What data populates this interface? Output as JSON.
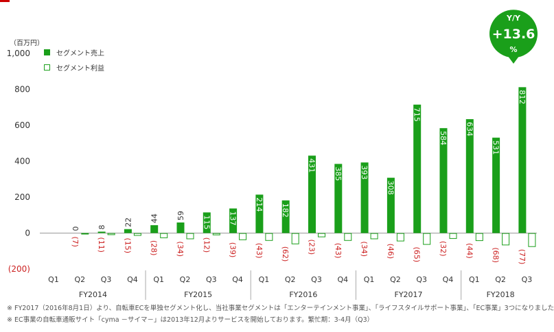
{
  "chart_data": {
    "type": "bar",
    "unit_label": "（百万円）",
    "ylim": [
      -200,
      1000
    ],
    "yticks": [
      1000,
      800,
      600,
      400,
      200,
      0,
      -200
    ],
    "ytick_labels": [
      "1,000",
      "800",
      "600",
      "400",
      "200",
      "0",
      "(200)"
    ],
    "categories": [
      "Q1",
      "Q2",
      "Q3",
      "Q4",
      "Q1",
      "Q2",
      "Q3",
      "Q4",
      "Q1",
      "Q2",
      "Q3",
      "Q4",
      "Q1",
      "Q2",
      "Q3",
      "Q4",
      "Q1",
      "Q2",
      "Q3"
    ],
    "fiscal_years": [
      {
        "label": "FY2014",
        "count": 4
      },
      {
        "label": "FY2015",
        "count": 4
      },
      {
        "label": "FY2016",
        "count": 4
      },
      {
        "label": "FY2017",
        "count": 4
      },
      {
        "label": "FY2018",
        "count": 3
      }
    ],
    "series": [
      {
        "name": "セグメント売上",
        "color": "#1a9f1a",
        "style": "filled",
        "values": [
          null,
          0,
          8,
          22,
          44,
          59,
          115,
          137,
          214,
          182,
          431,
          385,
          393,
          308,
          715,
          584,
          634,
          531,
          812
        ]
      },
      {
        "name": "セグメント利益",
        "color": "#1a9f1a",
        "style": "outline",
        "values": [
          null,
          -7,
          -11,
          -15,
          -28,
          -34,
          -12,
          -39,
          -43,
          -62,
          -23,
          -43,
          -34,
          -46,
          -65,
          -32,
          -44,
          -68,
          -77
        ],
        "value_labels": [
          "",
          "(7)",
          "(11)",
          "(15)",
          "(28)",
          "(34)",
          "(12)",
          "(39)",
          "(43)",
          "(62)",
          "(23)",
          "(43)",
          "(34)",
          "(46)",
          "(65)",
          "(32)",
          "(44)",
          "(68)",
          "(77)"
        ]
      }
    ],
    "legend_position": "top-left",
    "grid": false
  },
  "badge": {
    "top": "Y/Y",
    "value": "+13.6",
    "bottom": "%",
    "color": "#1a9f1a"
  },
  "footnotes": [
    "※  FY2017（2016年8月1日）より、自転車ECを単独セグメント化し、当社事業セグメントは「エンターテインメント事業」、「ライフスタイルサポート事業」、「EC事業」3つになりました",
    "※  EC事業の自転車通販サイト「cyma －サイマ－」は2013年12月よりサービスを開始しております。繁忙期：3-4月（Q3）"
  ]
}
